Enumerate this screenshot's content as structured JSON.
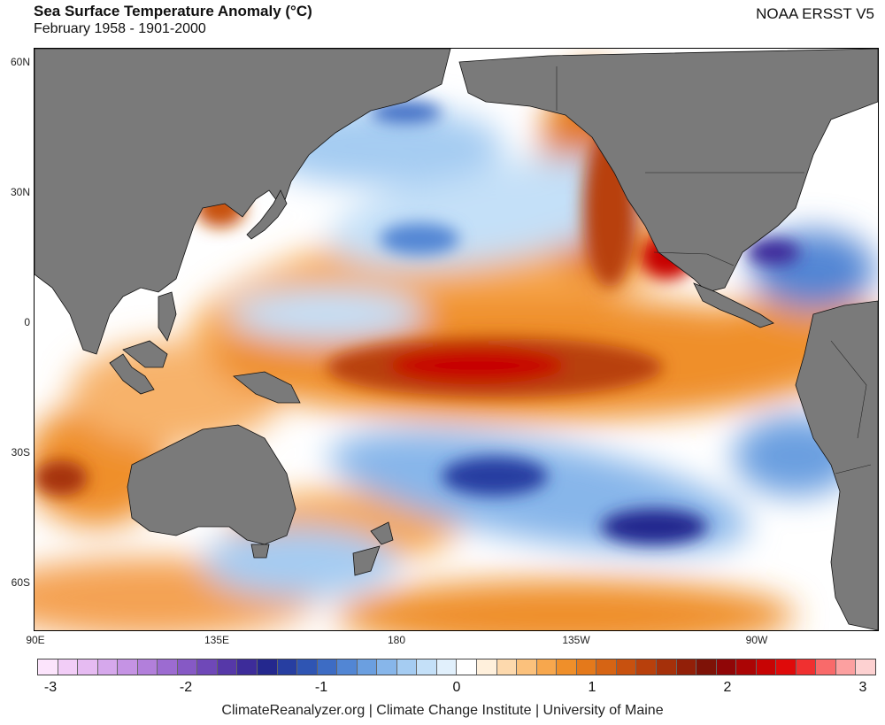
{
  "header": {
    "title": "Sea Surface Temperature Anomaly (°C)",
    "subtitle": "February 1958 - 1901-2000",
    "dataset": "NOAA ERSST V5"
  },
  "map": {
    "lat_labels": [
      "60N",
      "30N",
      "0",
      "30S",
      "60S"
    ],
    "lon_labels": [
      "90E",
      "135E",
      "180",
      "135W",
      "90W"
    ],
    "land_color": "#7a7a7a",
    "ocean_background": "#ffffff"
  },
  "colorbar": {
    "colors": [
      "#fce4fc",
      "#f2cdf7",
      "#e6bbf2",
      "#d6a8ec",
      "#c593e4",
      "#b27fdb",
      "#9c6bd1",
      "#8659c5",
      "#6f48b8",
      "#5638a8",
      "#3d2c9a",
      "#24288e",
      "#273ea1",
      "#2f55b3",
      "#3d6cc4",
      "#5286d4",
      "#6b9fe0",
      "#87b6ea",
      "#a5ccf2",
      "#c4e0f8",
      "#e1f0fc",
      "#ffffff",
      "#fff0dc",
      "#fdd9ad",
      "#fbc17c",
      "#f7a74d",
      "#ef8f2a",
      "#e4791b",
      "#d66414",
      "#c8510f",
      "#b8400c",
      "#a5300a",
      "#921f08",
      "#7e1207",
      "#900607",
      "#ab0505",
      "#c70404",
      "#df0a0a",
      "#f03030",
      "#f96a6a",
      "#fca0a0",
      "#fdd1d1"
    ],
    "tick_labels": [
      "-3",
      "-2",
      "-1",
      "0",
      "1",
      "2",
      "3"
    ]
  },
  "footer": {
    "credits": "ClimateReanalyzer.org | Climate Change Institute | University of Maine"
  }
}
